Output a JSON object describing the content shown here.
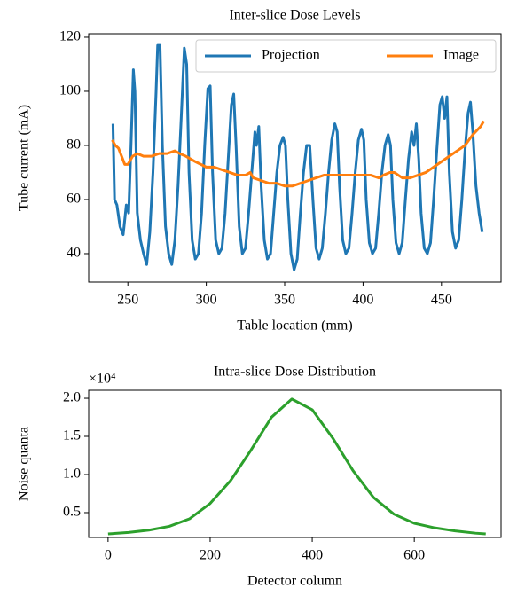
{
  "chart_data": [
    {
      "type": "line",
      "title": "Inter-slice Dose Levels",
      "xlabel": "Table location (mm)",
      "ylabel": "Tube current (mA)",
      "xlim": [
        225,
        488
      ],
      "ylim": [
        29.5,
        121.3
      ],
      "xticks": [
        250,
        300,
        350,
        400,
        450
      ],
      "yticks": [
        40,
        60,
        80,
        100,
        120
      ],
      "legend": "upper right",
      "series": [
        {
          "name": "Projection",
          "color": "#1f77b4",
          "x": [
            240.5,
            241.5,
            243,
            245,
            247,
            249,
            250.5,
            252,
            253.5,
            254.5,
            256,
            258,
            260,
            262,
            264,
            266,
            268,
            269,
            270.5,
            272,
            274,
            276,
            278,
            280,
            282,
            284,
            286,
            287.5,
            289,
            291,
            293,
            295,
            297,
            299,
            301,
            302.5,
            304,
            306,
            308,
            310,
            312,
            314,
            316,
            317.5,
            319,
            321,
            323,
            325,
            327,
            329,
            331,
            332,
            333.5,
            335,
            337,
            339,
            341,
            343,
            345,
            347,
            349,
            350.5,
            352,
            354,
            356,
            358,
            360,
            362,
            364,
            366,
            368,
            370,
            372,
            374,
            376,
            378,
            380,
            382,
            383.5,
            385,
            387,
            389,
            391,
            393,
            395,
            397,
            399,
            400.5,
            402,
            404,
            406,
            408,
            410,
            412,
            414,
            416,
            417.5,
            419,
            421,
            423,
            425,
            427,
            429,
            431,
            432.5,
            434,
            435.5,
            437,
            439,
            441,
            443,
            445,
            447,
            449,
            450.5,
            452,
            453.5,
            455,
            457,
            459,
            461,
            463,
            465,
            467,
            468.5,
            470,
            472,
            474,
            476
          ],
          "values": [
            88,
            60,
            58,
            50,
            47,
            58,
            55,
            80,
            108,
            100,
            55,
            45,
            40,
            36,
            48,
            70,
            100,
            117,
            117,
            80,
            50,
            40,
            36,
            45,
            65,
            90,
            116,
            110,
            70,
            45,
            38,
            40,
            55,
            80,
            101,
            102,
            70,
            45,
            40,
            42,
            55,
            75,
            95,
            99,
            80,
            50,
            40,
            42,
            55,
            70,
            85,
            80,
            87,
            65,
            45,
            38,
            40,
            55,
            70,
            80,
            83,
            80,
            60,
            40,
            34,
            38,
            55,
            70,
            80,
            80,
            60,
            42,
            38,
            42,
            55,
            70,
            82,
            88,
            85,
            65,
            45,
            40,
            42,
            55,
            70,
            82,
            86,
            82,
            60,
            44,
            40,
            42,
            55,
            70,
            80,
            84,
            80,
            60,
            44,
            40,
            44,
            60,
            75,
            85,
            80,
            88,
            75,
            55,
            42,
            40,
            44,
            60,
            78,
            95,
            98,
            90,
            98,
            70,
            48,
            42,
            45,
            60,
            78,
            92,
            96,
            85,
            65,
            55,
            48
          ]
        },
        {
          "name": "Image",
          "color": "#ff7f0e",
          "x": [
            240,
            242,
            244,
            246,
            248,
            250,
            253,
            256,
            260,
            265,
            270,
            275,
            280,
            283,
            287,
            293,
            300,
            305,
            310,
            315,
            320,
            325,
            328,
            330,
            335,
            340,
            345,
            350,
            355,
            360,
            365,
            370,
            375,
            380,
            385,
            390,
            395,
            400,
            405,
            410,
            413,
            417,
            420,
            425,
            430,
            435,
            440,
            445,
            450,
            455,
            460,
            465,
            470,
            475,
            477
          ],
          "values": [
            82,
            80,
            79,
            76,
            73,
            73,
            76,
            77,
            76,
            76,
            77,
            77,
            78,
            77,
            76,
            74,
            72,
            72,
            71,
            70,
            69,
            69,
            70,
            68,
            67,
            66,
            66,
            65,
            65,
            66,
            67,
            68,
            69,
            69,
            69,
            69,
            69,
            69,
            69,
            68,
            69,
            70,
            70,
            68,
            68,
            69,
            70,
            72,
            74,
            76,
            78,
            80,
            84,
            87,
            89
          ]
        }
      ]
    },
    {
      "type": "line",
      "title": "Intra-slice Dose Distribution",
      "xlabel": "Detector column",
      "ylabel": "Noise quanta",
      "offset_label": "×10⁴",
      "xlim": [
        -38,
        770
      ],
      "ylim": [
        0.174,
        2.105
      ],
      "xticks": [
        0,
        200,
        400,
        600
      ],
      "yticks": [
        0.5,
        {
          "value": 1,
          "label": "1.0"
        },
        1.5,
        {
          "value": 2,
          "label": "2.0"
        }
      ],
      "series": [
        {
          "color": "#2ca02c",
          "x": [
            0,
            40,
            80,
            120,
            160,
            200,
            240,
            280,
            320,
            360,
            400,
            440,
            480,
            520,
            560,
            600,
            640,
            680,
            720,
            740
          ],
          "values": [
            0.22,
            0.24,
            0.27,
            0.32,
            0.42,
            0.62,
            0.92,
            1.32,
            1.75,
            1.99,
            1.85,
            1.48,
            1.05,
            0.7,
            0.48,
            0.36,
            0.3,
            0.26,
            0.23,
            0.22
          ]
        }
      ]
    }
  ]
}
